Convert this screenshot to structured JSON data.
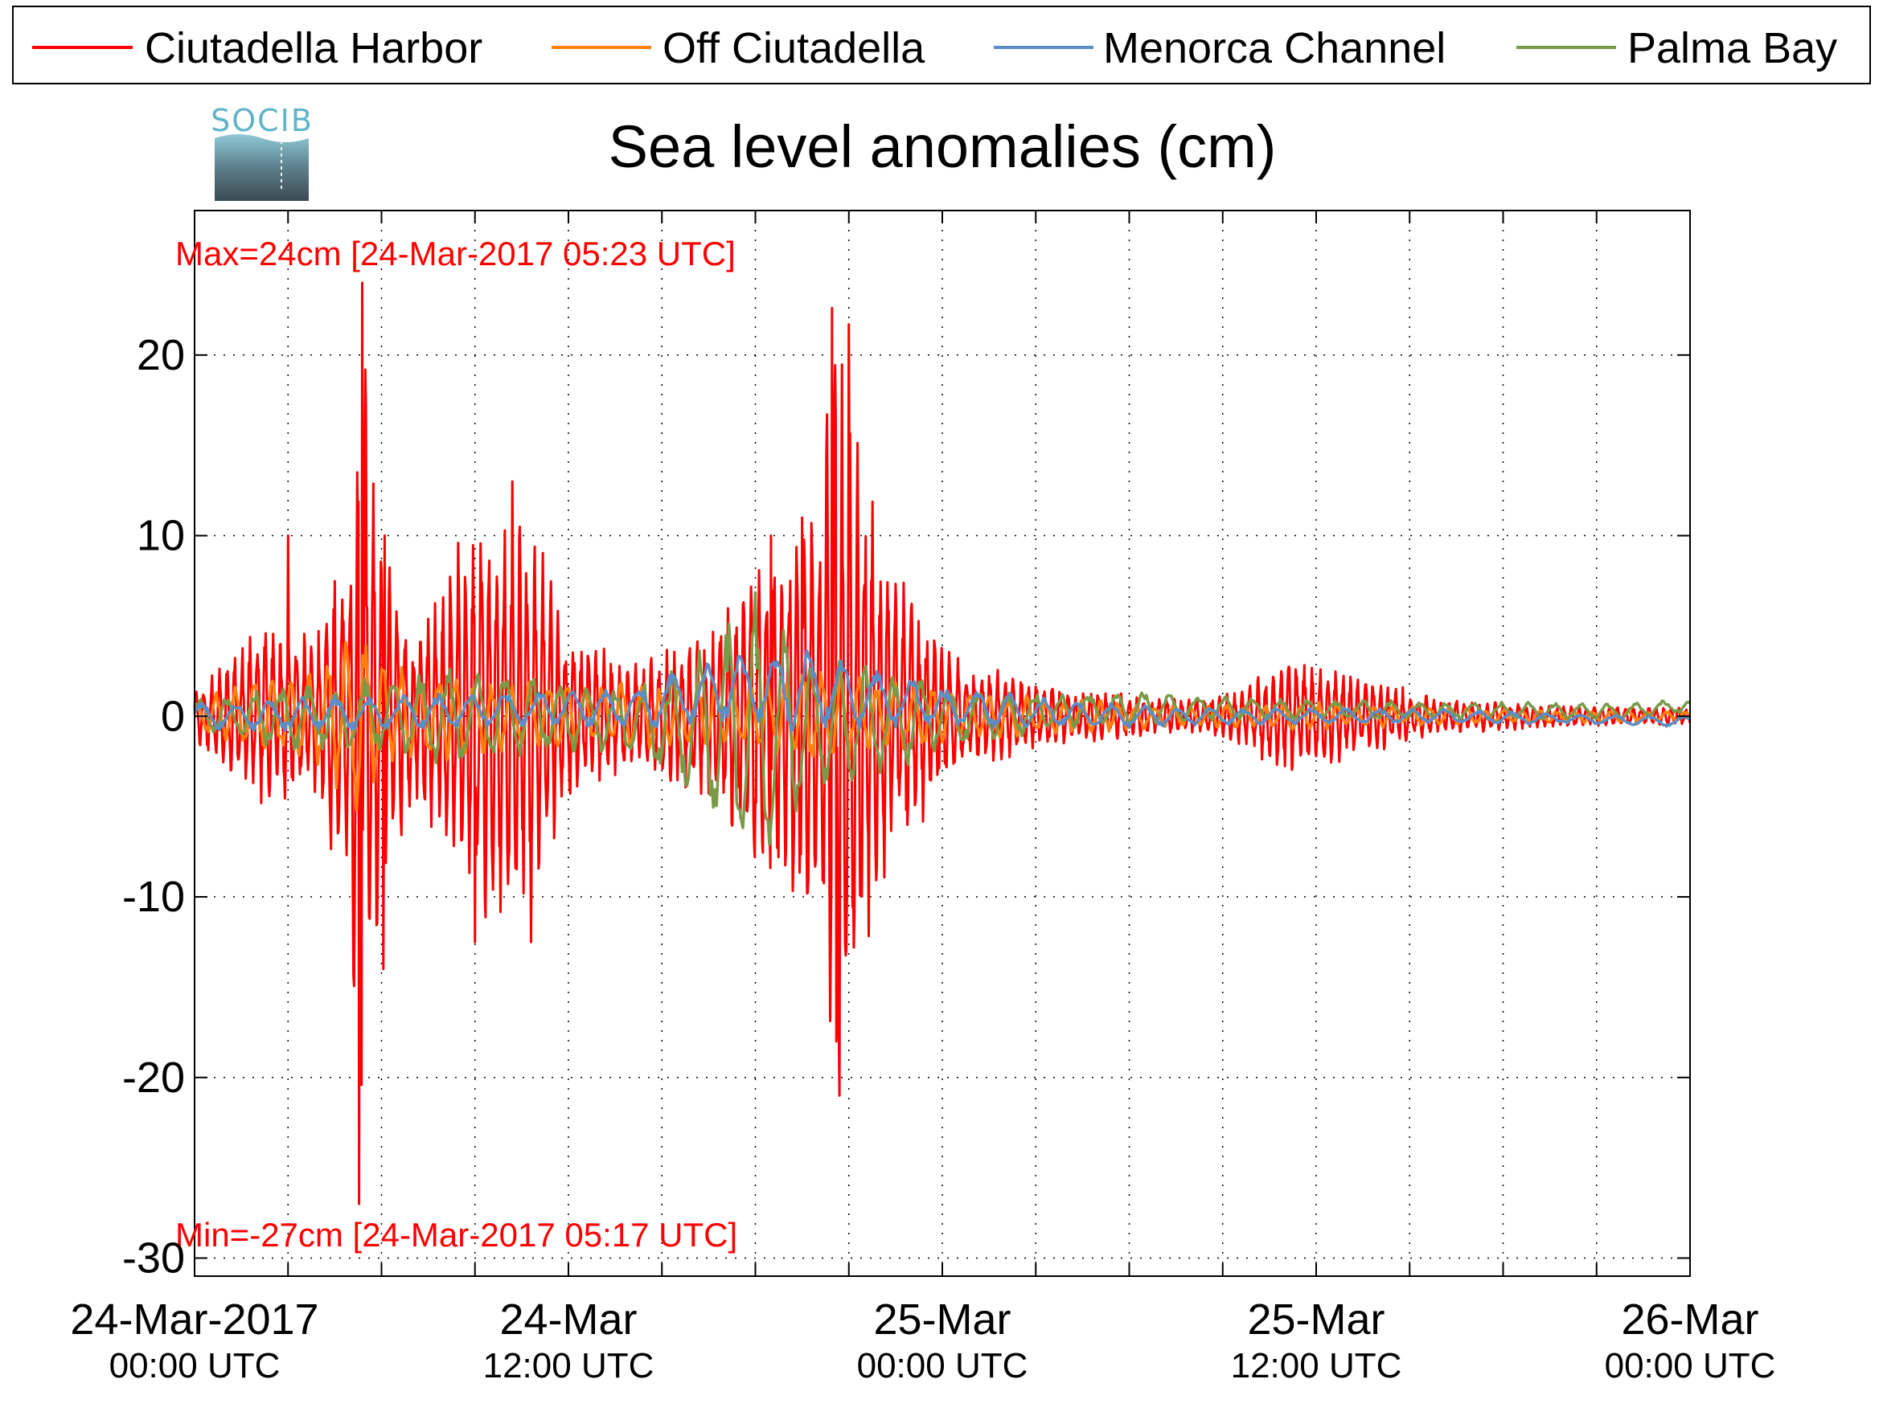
{
  "chart_data": {
    "type": "line",
    "title": "Sea level anomalies (cm)",
    "xlabel": "",
    "ylabel": "",
    "ylim": [
      -31,
      28
    ],
    "xlim_hours": [
      0,
      48
    ],
    "grid": true,
    "legend_position": "top",
    "logo_text": "SOCIB",
    "y_ticks": [
      20,
      10,
      0,
      -10,
      -20,
      -30
    ],
    "x_ticks": [
      {
        "hour": 0,
        "line1": "24-Mar-2017",
        "line2": "00:00 UTC"
      },
      {
        "hour": 12,
        "line1": "24-Mar",
        "line2": "12:00 UTC"
      },
      {
        "hour": 24,
        "line1": "25-Mar",
        "line2": "00:00 UTC"
      },
      {
        "hour": 36,
        "line1": "25-Mar",
        "line2": "12:00 UTC"
      },
      {
        "hour": 48,
        "line1": "26-Mar",
        "line2": "00:00 UTC"
      }
    ],
    "minor_x_hours": [
      3,
      6,
      9,
      15,
      18,
      21,
      27,
      30,
      33,
      39,
      42,
      45
    ],
    "annotations": {
      "max": "Max=24cm [24-Mar-2017 05:23 UTC]",
      "min": "Min=-27cm [24-Mar-2017 05:17 UTC]"
    },
    "series": [
      {
        "name": "Ciutadella Harbor",
        "color": "#ff0000",
        "envelope": [
          [
            0,
            1.5
          ],
          [
            1,
            3
          ],
          [
            2,
            5
          ],
          [
            3,
            5
          ],
          [
            4,
            5
          ],
          [
            5,
            13
          ],
          [
            5.3,
            24
          ],
          [
            6,
            10
          ],
          [
            7,
            5
          ],
          [
            8,
            8
          ],
          [
            9,
            12
          ],
          [
            10,
            12
          ],
          [
            11,
            11
          ],
          [
            12,
            5
          ],
          [
            13,
            4
          ],
          [
            14,
            3
          ],
          [
            15,
            4
          ],
          [
            16,
            4
          ],
          [
            17,
            6
          ],
          [
            18,
            9
          ],
          [
            19,
            10
          ],
          [
            20,
            13
          ],
          [
            20.5,
            22
          ],
          [
            21,
            18
          ],
          [
            22,
            10
          ],
          [
            23,
            7
          ],
          [
            24,
            4
          ],
          [
            25,
            3
          ],
          [
            26,
            2.5
          ],
          [
            27,
            2
          ],
          [
            28,
            1.5
          ],
          [
            29,
            1.5
          ],
          [
            30,
            1.2
          ],
          [
            31,
            1
          ],
          [
            32,
            1
          ],
          [
            33,
            1.2
          ],
          [
            34,
            2
          ],
          [
            35,
            3.5
          ],
          [
            36,
            3
          ],
          [
            37,
            2.5
          ],
          [
            38,
            2
          ],
          [
            39,
            1.5
          ],
          [
            40,
            1
          ],
          [
            42,
            0.8
          ],
          [
            44,
            0.6
          ],
          [
            48,
            0.5
          ]
        ],
        "period_hours": 0.25,
        "peaks": [
          {
            "hour": 5.38,
            "value": 24
          },
          {
            "hour": 5.28,
            "value": -27
          },
          {
            "hour": 20.45,
            "value": 22.6
          },
          {
            "hour": 20.7,
            "value": -21
          },
          {
            "hour": 21.0,
            "value": 21.7
          },
          {
            "hour": 20.6,
            "value": -18
          },
          {
            "hour": 3.0,
            "value": 10
          },
          {
            "hour": 6.1,
            "value": 10
          },
          {
            "hour": 6.05,
            "value": -14
          },
          {
            "hour": 10.2,
            "value": 13
          },
          {
            "hour": 10.8,
            "value": -12.5
          },
          {
            "hour": 9.0,
            "value": -12.5
          },
          {
            "hour": 18.5,
            "value": 10
          },
          {
            "hour": 19.5,
            "value": 11
          }
        ]
      },
      {
        "name": "Off Ciutadella",
        "color": "#ff7f0e",
        "envelope": [
          [
            0,
            1
          ],
          [
            2,
            2
          ],
          [
            4,
            3
          ],
          [
            5,
            5
          ],
          [
            5.3,
            7
          ],
          [
            6,
            3
          ],
          [
            8,
            2.5
          ],
          [
            10,
            2
          ],
          [
            12,
            2
          ],
          [
            15,
            2
          ],
          [
            18,
            2
          ],
          [
            20,
            3
          ],
          [
            21,
            2.5
          ],
          [
            24,
            1.5
          ],
          [
            28,
            1
          ],
          [
            32,
            0.6
          ],
          [
            36,
            0.8
          ],
          [
            40,
            0.5
          ],
          [
            44,
            0.4
          ],
          [
            48,
            0.3
          ]
        ],
        "period_hours": 0.6
      },
      {
        "name": "Menorca Channel",
        "color": "#5b8ec6",
        "envelope": [
          [
            0,
            0.8
          ],
          [
            4,
            1
          ],
          [
            8,
            1
          ],
          [
            12,
            1
          ],
          [
            15,
            1.5
          ],
          [
            17,
            2
          ],
          [
            19,
            2.5
          ],
          [
            21,
            2
          ],
          [
            24,
            1.2
          ],
          [
            28,
            0.8
          ],
          [
            32,
            0.5
          ],
          [
            36,
            0.5
          ],
          [
            40,
            0.4
          ],
          [
            44,
            0.3
          ],
          [
            48,
            0.3
          ]
        ],
        "period_hours": 1.1,
        "trend": [
          [
            0,
            0
          ],
          [
            14,
            0.5
          ],
          [
            17,
            1.5
          ],
          [
            20,
            1.5
          ],
          [
            24,
            0.5
          ],
          [
            30,
            0
          ],
          [
            40,
            0
          ],
          [
            48,
            -0.3
          ]
        ]
      },
      {
        "name": "Palma Bay",
        "color": "#7a9a4a",
        "envelope": [
          [
            0,
            1
          ],
          [
            3,
            2
          ],
          [
            5,
            2
          ],
          [
            8,
            3
          ],
          [
            10,
            3
          ],
          [
            12,
            2
          ],
          [
            14,
            2
          ],
          [
            16,
            4
          ],
          [
            17,
            7
          ],
          [
            18,
            8
          ],
          [
            19,
            6
          ],
          [
            20,
            4
          ],
          [
            22,
            3
          ],
          [
            24,
            2
          ],
          [
            26,
            1.5
          ],
          [
            28,
            1
          ],
          [
            30,
            1
          ],
          [
            32,
            0.7
          ],
          [
            36,
            0.6
          ],
          [
            40,
            0.5
          ],
          [
            44,
            0.5
          ],
          [
            48,
            0.4
          ]
        ],
        "period_hours": 0.9,
        "trend": [
          [
            0,
            0
          ],
          [
            12,
            0
          ],
          [
            18,
            -1
          ],
          [
            24,
            0
          ],
          [
            30,
            0.5
          ],
          [
            40,
            0.3
          ],
          [
            46,
            0.3
          ],
          [
            48,
            0.6
          ]
        ]
      }
    ]
  }
}
